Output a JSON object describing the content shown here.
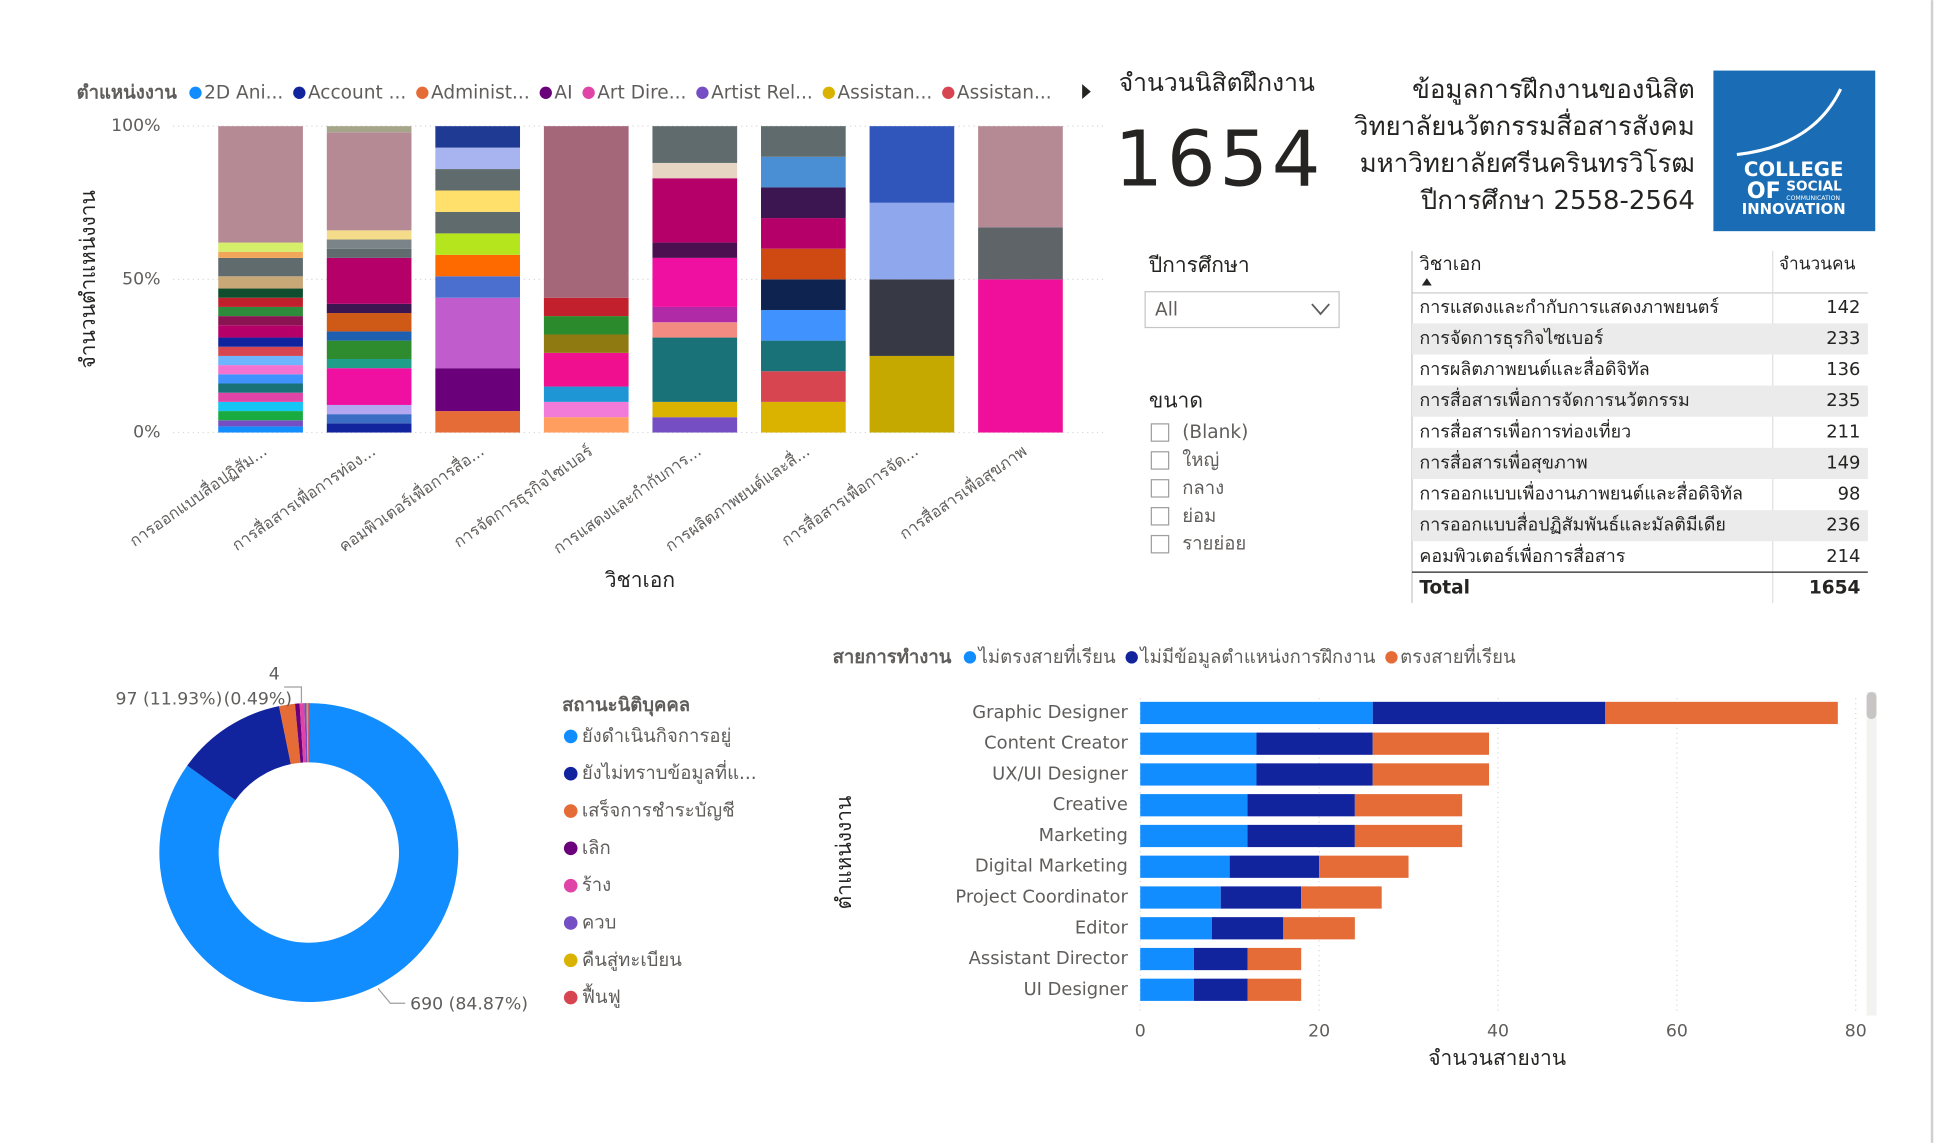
{
  "header": {
    "title_lines": [
      "ข้อมูลการฝึกงานของนิสิต",
      "วิทยาลัยนวัตกรรมสื่อสารสังคม",
      "มหาวิทยาลัยศรีนครินทรวิโรฒ",
      "ปีการศึกษา 2558-2564"
    ],
    "logo": [
      "COLLEGE",
      "OF",
      "SOCIAL",
      "COMMUNICATION",
      "INNOVATION"
    ]
  },
  "kpi": {
    "label": "จำนวนนิสิตฝึกงาน",
    "value": 1654
  },
  "filters": {
    "year": {
      "title": "ปีการศึกษา",
      "selected": "All"
    },
    "size": {
      "title": "ขนาด",
      "options": [
        "(Blank)",
        "ใหญ่",
        "กลาง",
        "ย่อม",
        "รายย่อย"
      ]
    }
  },
  "table": {
    "columns": [
      "วิชาเอก",
      "จำนวนคน"
    ],
    "rows": [
      [
        "การแสดงและกำกับการแสดงภาพยนตร์",
        142
      ],
      [
        "การจัดการธุรกิจไซเบอร์",
        233
      ],
      [
        "การผลิตภาพยนต์และสื่อดิจิทัล",
        136
      ],
      [
        "การสื่อสารเพื่อการจัดการนวัตกรรม",
        235
      ],
      [
        "การสื่อสารเพื่อการท่องเที่ยว",
        211
      ],
      [
        "การสื่อสารเพื่อสุขภาพ",
        149
      ],
      [
        "การออกแบบเพื่องานภาพยนต์และสื่อดิจิทัล",
        98
      ],
      [
        "การออกแบบสื่อปฏิสัมพันธ์และมัลติมีเดีย",
        236
      ],
      [
        "คอมพิวเตอร์เพื่อการสื่อสาร",
        214
      ]
    ],
    "total": [
      "Total",
      1654
    ]
  },
  "chart_data": [
    {
      "type": "bar",
      "legend_title": "ตำแหน่งงาน",
      "legend": [
        {
          "name": "2D Ani...",
          "color": "#118dff"
        },
        {
          "name": "Account ...",
          "color": "#12239e"
        },
        {
          "name": "Administ...",
          "color": "#e66c37"
        },
        {
          "name": "AI",
          "color": "#6b007b"
        },
        {
          "name": "Art Dire...",
          "color": "#e044a7"
        },
        {
          "name": "Artist Rel...",
          "color": "#744ec2"
        },
        {
          "name": "Assistan...",
          "color": "#d9b300"
        },
        {
          "name": "Assistan...",
          "color": "#d64550"
        }
      ],
      "y_label": "จำนวนตำแหน่งงาน",
      "x_label": "วิชาเอก",
      "categories": [
        "การออกแบบสื่อปฏิสัม...",
        "การสื่อสารเพื่อการท่อง...",
        "คอมพิวเตอร์เพื่อการสื่อ...",
        "การจัดการธุรกิจไซเบอร์",
        "การแสดงและกำกับการ...",
        "การผลิตภาพยนต์และสื่...",
        "การสื่อสารเพื่อการจัด...",
        "การสื่อสารเพื่อสุขภาพ"
      ],
      "stacks": [
        [
          {
            "color": "#118dff",
            "value": 2
          },
          {
            "color": "#744ec2",
            "value": 2
          },
          {
            "color": "#1aab40",
            "value": 3
          },
          {
            "color": "#15c6f4",
            "value": 3
          },
          {
            "color": "#e044a7",
            "value": 3
          },
          {
            "color": "#197278",
            "value": 3
          },
          {
            "color": "#4092ff",
            "value": 3
          },
          {
            "color": "#f472d0",
            "value": 3
          },
          {
            "color": "#6fb4ff",
            "value": 3
          },
          {
            "color": "#d64550",
            "value": 3
          },
          {
            "color": "#12239e",
            "value": 3
          },
          {
            "color": "#b5006a",
            "value": 4
          },
          {
            "color": "#8a1452",
            "value": 3
          },
          {
            "color": "#2e8b3c",
            "value": 3
          },
          {
            "color": "#c0202b",
            "value": 3
          },
          {
            "color": "#0f4d2e",
            "value": 3
          },
          {
            "color": "#c9a878",
            "value": 4
          },
          {
            "color": "#5f6b6d",
            "value": 6
          },
          {
            "color": "#f2a65a",
            "value": 2
          },
          {
            "color": "#d6ef6b",
            "value": 3
          },
          {
            "color": "#b68a95",
            "value": 38
          }
        ],
        [
          {
            "color": "#12239e",
            "value": 3
          },
          {
            "color": "#3b6dc4",
            "value": 3
          },
          {
            "color": "#b4a7f2",
            "value": 3
          },
          {
            "color": "#ef0fa0",
            "value": 12
          },
          {
            "color": "#1f9e89",
            "value": 3
          },
          {
            "color": "#2e8b2e",
            "value": 6
          },
          {
            "color": "#1f5fb0",
            "value": 3
          },
          {
            "color": "#cf5a17",
            "value": 6
          },
          {
            "color": "#3c1650",
            "value": 3
          },
          {
            "color": "#b5006a",
            "value": 15
          },
          {
            "color": "#5f6b6d",
            "value": 3
          },
          {
            "color": "#7b8488",
            "value": 3
          },
          {
            "color": "#f4dc8a",
            "value": 3
          },
          {
            "color": "#b68a95",
            "value": 32
          },
          {
            "color": "#a5a58a",
            "value": 2
          }
        ],
        [
          {
            "color": "#e66c37",
            "value": 7
          },
          {
            "color": "#6b007b",
            "value": 14
          },
          {
            "color": "#c05ccc",
            "value": 23
          },
          {
            "color": "#4a6fcf",
            "value": 7
          },
          {
            "color": "#ff6a00",
            "value": 7
          },
          {
            "color": "#b5e61d",
            "value": 7
          },
          {
            "color": "#5f6b6d",
            "value": 7
          },
          {
            "color": "#ffe06b",
            "value": 7
          },
          {
            "color": "#5f6b6d",
            "value": 7
          },
          {
            "color": "#a8b4f0",
            "value": 7
          },
          {
            "color": "#1f3a93",
            "value": 7
          }
        ],
        [
          {
            "color": "#ff9e5e",
            "value": 5
          },
          {
            "color": "#f27ad9",
            "value": 5
          },
          {
            "color": "#1e95d4",
            "value": 5
          },
          {
            "color": "#ef0f8f",
            "value": 11
          },
          {
            "color": "#8f7a12",
            "value": 6
          },
          {
            "color": "#2b8a2b",
            "value": 6
          },
          {
            "color": "#c3202e",
            "value": 6
          },
          {
            "color": "#a46679",
            "value": 56
          }
        ],
        [
          {
            "color": "#744ec2",
            "value": 5
          },
          {
            "color": "#d9b300",
            "value": 5
          },
          {
            "color": "#197278",
            "value": 21
          },
          {
            "color": "#f28b82",
            "value": 5
          },
          {
            "color": "#b02aa8",
            "value": 5
          },
          {
            "color": "#ef0fa0",
            "value": 16
          },
          {
            "color": "#4b1050",
            "value": 5
          },
          {
            "color": "#b5006a",
            "value": 21
          },
          {
            "color": "#e6d5c3",
            "value": 5
          },
          {
            "color": "#5f6b6d",
            "value": 12
          }
        ],
        [
          {
            "color": "#d9b300",
            "value": 10
          },
          {
            "color": "#d64550",
            "value": 10
          },
          {
            "color": "#197278",
            "value": 10
          },
          {
            "color": "#4092ff",
            "value": 10
          },
          {
            "color": "#0f2350",
            "value": 10
          },
          {
            "color": "#cf4a12",
            "value": 10
          },
          {
            "color": "#b5006a",
            "value": 10
          },
          {
            "color": "#3c1650",
            "value": 10
          },
          {
            "color": "#4a8fd4",
            "value": 10
          },
          {
            "color": "#5f6b6d",
            "value": 10
          }
        ],
        [
          {
            "color": "#c5a800",
            "value": 25
          },
          {
            "color": "#373a45",
            "value": 25
          },
          {
            "color": "#8fa7ec",
            "value": 25
          },
          {
            "color": "#3056bc",
            "value": 25
          }
        ],
        [
          {
            "color": "#ef0f9a",
            "value": 50
          },
          {
            "color": "#5f6469",
            "value": 17
          },
          {
            "color": "#b68a95",
            "value": 33
          }
        ]
      ],
      "ylim": [
        0,
        100
      ],
      "yticks": [
        {
          "value": 0,
          "label": "0%"
        },
        {
          "value": 50,
          "label": "50%"
        },
        {
          "value": 100,
          "label": "100%"
        }
      ],
      "grid": true
    },
    {
      "type": "donut",
      "legend_title": "สถานะนิติบุคคล",
      "categories": [
        "ยังดำเนินกิจการอยู่",
        "ยังไม่ทราบข้อมูลที่แ...",
        "เสร็จการชำระบัญชี",
        "เลิก",
        "ร้าง",
        "ควบ",
        "คืนสู่ทะเบียน",
        "ฟื้นฟู"
      ],
      "colors": [
        "#118dff",
        "#12239e",
        "#e66c37",
        "#6b007b",
        "#e044a7",
        "#744ec2",
        "#d9b300",
        "#d64550"
      ],
      "values": [
        690,
        97,
        14,
        4,
        4,
        2,
        1,
        1
      ],
      "value_labels": [
        "690 (84.87%)",
        "97 (11.93%)",
        null,
        "(0.49%)",
        null,
        null,
        null,
        null
      ]
    },
    {
      "type": "barh",
      "legend_title": "สายการทำงาน",
      "y_label": "ตำแหน่งงาน",
      "x_label": "จำนวนสายงาน",
      "categories": [
        "Graphic Designer",
        "Content Creator",
        "UX/UI Designer",
        "Creative",
        "Marketing",
        "Digital Marketing",
        "Project Coordinator",
        "Editor",
        "Assistant Director",
        "UI Designer"
      ],
      "series": [
        {
          "name": "ไม่ตรงสายที่เรียน",
          "color": "#118dff",
          "values": [
            26,
            13,
            13,
            12,
            12,
            10,
            9,
            8,
            6,
            6
          ]
        },
        {
          "name": "ไม่มีข้อมูลตำแหน่งการฝึกงาน",
          "color": "#12239e",
          "values": [
            26,
            13,
            13,
            12,
            12,
            10,
            9,
            8,
            6,
            6
          ]
        },
        {
          "name": "ตรงสายที่เรียน",
          "color": "#e66c37",
          "values": [
            26,
            13,
            13,
            12,
            12,
            10,
            9,
            8,
            6,
            6
          ]
        }
      ],
      "xlim": [
        0,
        82
      ],
      "xticks": [
        0,
        20,
        40,
        60,
        80
      ],
      "grid": true
    }
  ]
}
